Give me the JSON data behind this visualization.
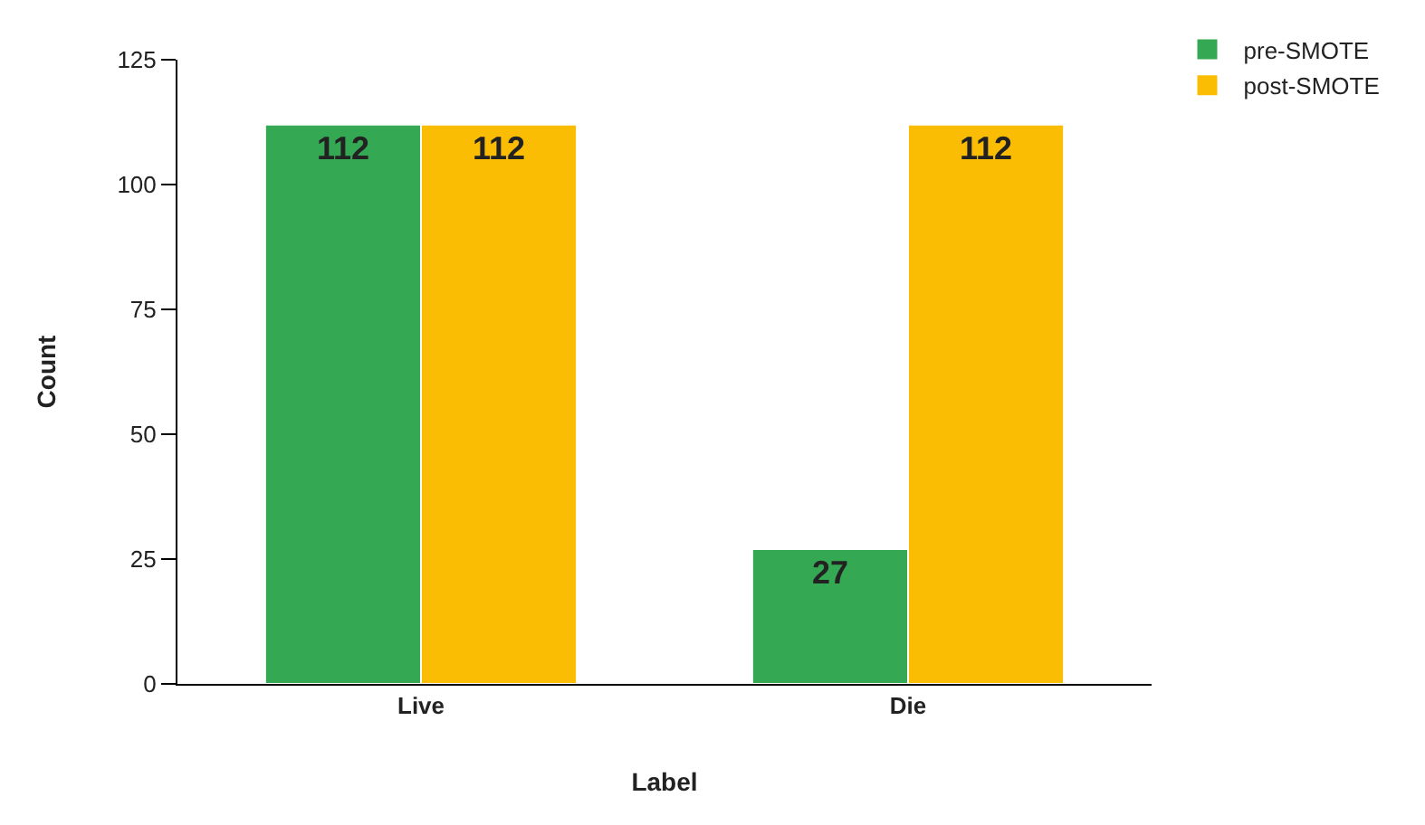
{
  "chart_data": {
    "type": "bar",
    "xlabel": "Label",
    "ylabel": "Count",
    "categories": [
      "Live",
      "Die"
    ],
    "series": [
      {
        "name": "pre-SMOTE",
        "color": "#34a853",
        "values": [
          112,
          27
        ]
      },
      {
        "name": "post-SMOTE",
        "color": "#fbbc04",
        "values": [
          112,
          112
        ]
      }
    ],
    "ylim": [
      0,
      125
    ],
    "yticks": [
      0,
      25,
      50,
      75,
      100,
      125
    ],
    "grid": false,
    "legend": "top right",
    "data_labels": true
  }
}
